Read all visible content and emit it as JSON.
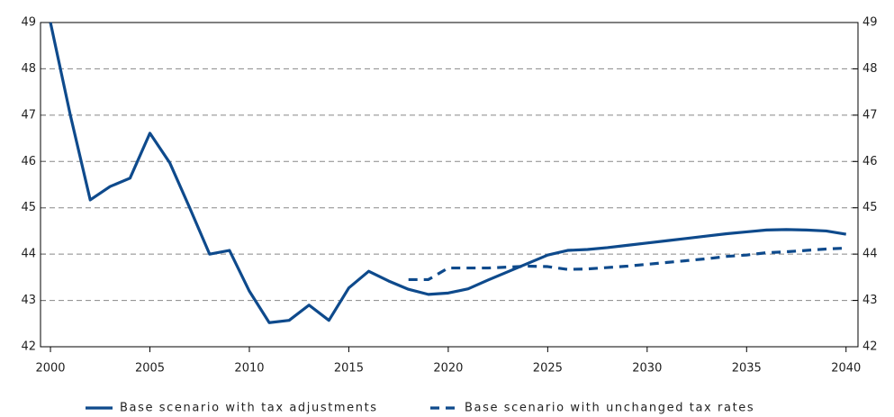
{
  "chart_data": {
    "type": "line",
    "x": [
      2000,
      2001,
      2002,
      2003,
      2004,
      2005,
      2006,
      2007,
      2008,
      2009,
      2010,
      2011,
      2012,
      2013,
      2014,
      2015,
      2016,
      2017,
      2018,
      2019,
      2020,
      2021,
      2022,
      2023,
      2024,
      2025,
      2026,
      2027,
      2028,
      2029,
      2030,
      2031,
      2032,
      2033,
      2034,
      2035,
      2036,
      2037,
      2038,
      2039,
      2040
    ],
    "series": [
      {
        "name": "Base scenario with tax adjustments",
        "color": "#0e4a8c",
        "dash": false,
        "values": [
          49.0,
          47.0,
          45.17,
          45.46,
          45.64,
          46.61,
          45.97,
          45.0,
          44.0,
          44.08,
          43.2,
          42.52,
          42.57,
          42.9,
          42.57,
          43.27,
          43.63,
          43.42,
          43.24,
          43.13,
          43.16,
          43.25,
          43.44,
          43.62,
          43.8,
          43.98,
          44.08,
          44.1,
          44.14,
          44.19,
          44.24,
          44.29,
          44.34,
          44.39,
          44.44,
          44.48,
          44.52,
          44.53,
          44.52,
          44.5,
          44.43
        ]
      },
      {
        "name": "Base scenario with unchanged tax rates",
        "color": "#0e4a8c",
        "dash": true,
        "values": [
          null,
          null,
          null,
          null,
          null,
          null,
          null,
          null,
          null,
          null,
          null,
          null,
          null,
          null,
          null,
          null,
          null,
          null,
          43.45,
          43.45,
          43.7,
          43.7,
          43.7,
          43.72,
          43.74,
          43.73,
          43.67,
          43.68,
          43.71,
          43.74,
          43.78,
          43.82,
          43.86,
          43.9,
          43.95,
          43.98,
          44.03,
          44.05,
          44.08,
          44.11,
          44.13
        ]
      }
    ],
    "xlim": [
      1999.5,
      2040.6
    ],
    "xticks": [
      2000,
      2005,
      2010,
      2015,
      2020,
      2025,
      2030,
      2035,
      2040
    ],
    "ylim": [
      42,
      49
    ],
    "yticks": [
      42,
      43,
      44,
      45,
      46,
      47,
      48,
      49
    ],
    "y2lim": [
      42,
      49
    ],
    "y2ticks": [
      42,
      43,
      44,
      45,
      46,
      47,
      48,
      49
    ],
    "grid": true
  }
}
